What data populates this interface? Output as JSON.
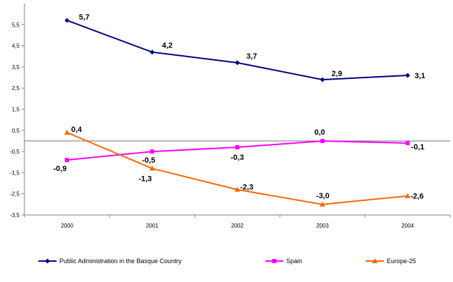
{
  "chart_data": {
    "type": "line",
    "categories": [
      "2000",
      "2001",
      "2002",
      "2003",
      "2004"
    ],
    "ylim": [
      -3.5,
      6.5
    ],
    "yticks": [
      -3.5,
      -2.5,
      -1.5,
      -0.5,
      0.5,
      1.5,
      2.5,
      3.5,
      4.5,
      5.5
    ],
    "ytick_labels": [
      "-3,5",
      "-2,5",
      "-1,5",
      "-0,5",
      "0,5",
      "1,5",
      "2,5",
      "3,5",
      "4,5",
      "5,5"
    ],
    "zero_line": true,
    "legend_position": "bottom",
    "series": [
      {
        "name": "Public Administration in the Basque Country",
        "values": [
          5.7,
          4.2,
          3.7,
          2.9,
          3.1
        ],
        "labels": [
          "5,7",
          "4,2",
          "3,7",
          "2,9",
          "3,1"
        ],
        "color": "#000080",
        "marker": "diamond"
      },
      {
        "name": "Spain",
        "values": [
          -0.9,
          -0.5,
          -0.3,
          0.0,
          -0.1
        ],
        "labels": [
          "-0,9",
          "-0,5",
          "-0,3",
          "0,0",
          "-0,1"
        ],
        "color": "#ff00ff",
        "marker": "square"
      },
      {
        "name": "Europe-25",
        "values": [
          0.4,
          -1.3,
          -2.3,
          -3.0,
          -2.6
        ],
        "labels": [
          "0,4",
          "-1,3",
          "-2,3",
          "-3,0",
          "-2,6"
        ],
        "color": "#ff6600",
        "marker": "triangle"
      }
    ]
  }
}
